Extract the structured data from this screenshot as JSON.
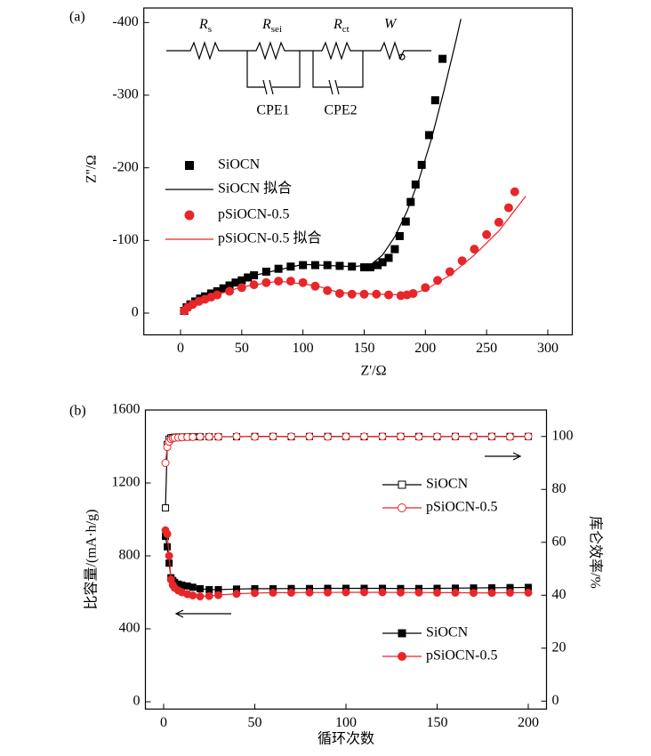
{
  "chart_data": [
    {
      "type": "line",
      "panel": "(a)",
      "xlabel": "Z'/Ω",
      "ylabel": "Z''/Ω",
      "xlim": [
        -30,
        320
      ],
      "xticks": [
        0,
        50,
        100,
        150,
        200,
        250,
        300
      ],
      "ylim": [
        30,
        -420
      ],
      "yticks": [
        -400,
        -300,
        -200,
        -100,
        0
      ],
      "circuit": {
        "elements": [
          {
            "symbol": "R",
            "subscript": "s"
          },
          {
            "symbol": "R",
            "subscript": "sei"
          },
          {
            "symbol": "R",
            "subscript": "ct"
          },
          {
            "symbol": "W"
          }
        ],
        "cpe": [
          "CPE1",
          "CPE2"
        ]
      },
      "series": [
        {
          "name": "SiOCN",
          "color": "#000000",
          "marker": "square",
          "filled": true,
          "line": false,
          "x": [
            3,
            5,
            8,
            12,
            16,
            20,
            25,
            30,
            35,
            40,
            45,
            50,
            55,
            60,
            70,
            80,
            90,
            100,
            110,
            120,
            130,
            140,
            150,
            155,
            161,
            165,
            170,
            175,
            179,
            184,
            188,
            192,
            197,
            203,
            208,
            214
          ],
          "values": [
            -3,
            -8,
            -12,
            -16,
            -20,
            -23,
            -27,
            -30,
            -34,
            -38,
            -42,
            -45,
            -49,
            -52,
            -57,
            -61,
            -64,
            -66,
            -66,
            -66,
            -65,
            -64,
            -63,
            -63,
            -66,
            -70,
            -76,
            -88,
            -106,
            -126,
            -153,
            -177,
            -204,
            -245,
            -293,
            -350
          ]
        },
        {
          "name": "SiOCN 拟合",
          "color": "#000000",
          "marker": "none",
          "filled": false,
          "line": true,
          "x": [
            2,
            20,
            50,
            100,
            140,
            155,
            165,
            175,
            185,
            195,
            205,
            215,
            225,
            229
          ],
          "values": [
            -1,
            -25,
            -48,
            -67,
            -64,
            -66,
            -80,
            -105,
            -140,
            -185,
            -240,
            -305,
            -375,
            -405
          ]
        },
        {
          "name": "pSiOCN-0.5",
          "color": "#e8262a",
          "marker": "circle",
          "filled": true,
          "line": false,
          "x": [
            3,
            6,
            10,
            15,
            20,
            25,
            30,
            40,
            50,
            60,
            70,
            80,
            90,
            100,
            110,
            120,
            130,
            140,
            150,
            160,
            170,
            180,
            185,
            190,
            200,
            210,
            220,
            230,
            240,
            250,
            260,
            268,
            273
          ],
          "values": [
            -3,
            -8,
            -12,
            -16,
            -19,
            -22,
            -25,
            -30,
            -35,
            -39,
            -42,
            -44,
            -44,
            -42,
            -37,
            -31,
            -27,
            -26,
            -26,
            -26,
            -25,
            -24,
            -25,
            -27,
            -35,
            -45,
            -57,
            -72,
            -88,
            -108,
            -125,
            -145,
            -167
          ]
        },
        {
          "name": "pSiOCN-0.5 拟合",
          "color": "#e8262a",
          "marker": "none",
          "filled": false,
          "line": true,
          "x": [
            2,
            20,
            50,
            80,
            110,
            130,
            160,
            185,
            200,
            220,
            240,
            260,
            282
          ],
          "values": [
            -1,
            -20,
            -36,
            -44,
            -38,
            -28,
            -26,
            -25,
            -32,
            -52,
            -80,
            -113,
            -161
          ]
        }
      ]
    },
    {
      "type": "line",
      "panel": "(b)",
      "xlabel": "循环次数",
      "ylabel": "比容量/(mA·h/g)",
      "y2label": "库仑效率/%",
      "xlim": [
        -10,
        210
      ],
      "xticks": [
        0,
        50,
        100,
        150,
        200
      ],
      "ylim": [
        -40,
        1600
      ],
      "yticks": [
        0,
        400,
        800,
        1200,
        1600
      ],
      "y2lim": [
        -3,
        110
      ],
      "y2ticks": [
        0,
        20,
        40,
        60,
        80,
        100
      ],
      "x": [
        1,
        2,
        3,
        4,
        5,
        6,
        8,
        10,
        13,
        16,
        20,
        25,
        30,
        40,
        50,
        60,
        70,
        80,
        90,
        100,
        110,
        120,
        130,
        140,
        150,
        160,
        170,
        180,
        190,
        200
      ],
      "series": [
        {
          "name": "SiOCN",
          "color": "#000000",
          "marker": "square",
          "filled": false,
          "line": true,
          "axis": "y2",
          "values": [
            73,
            97,
            99,
            99.5,
            99.6,
            99.7,
            99.8,
            99.8,
            99.8,
            99.9,
            99.9,
            99.9,
            99.9,
            99.9,
            100,
            100,
            99.9,
            100,
            100,
            100,
            99.9,
            100,
            100,
            100,
            99.9,
            100,
            100,
            100,
            100,
            100
          ]
        },
        {
          "name": "pSiOCN-0.5",
          "color": "#e8262a",
          "marker": "circle",
          "filled": false,
          "line": true,
          "axis": "y2",
          "values": [
            90,
            96,
            98,
            99,
            99.3,
            99.5,
            99.6,
            99.7,
            99.8,
            99.8,
            99.9,
            99.9,
            99.9,
            100,
            99.9,
            100,
            100,
            100,
            99.9,
            100,
            100,
            100,
            100,
            99.9,
            100,
            100,
            100,
            100,
            99.9,
            100
          ]
        },
        {
          "name": "SiOCN",
          "color": "#000000",
          "marker": "square",
          "filled": true,
          "line": true,
          "values": [
            907,
            850,
            760,
            680,
            665,
            655,
            645,
            640,
            635,
            628,
            620,
            615,
            615,
            618,
            620,
            620,
            621,
            621,
            622,
            622,
            622,
            622,
            621,
            621,
            622,
            623,
            624,
            625,
            626,
            627
          ]
        },
        {
          "name": "pSiOCN-0.5",
          "color": "#e8262a",
          "marker": "circle",
          "filled": true,
          "line": true,
          "values": [
            940,
            920,
            800,
            670,
            640,
            625,
            610,
            600,
            590,
            583,
            578,
            580,
            585,
            592,
            596,
            598,
            598,
            599,
            599,
            600,
            600,
            600,
            599,
            599,
            598,
            598,
            597,
            597,
            598,
            598
          ]
        }
      ]
    }
  ]
}
